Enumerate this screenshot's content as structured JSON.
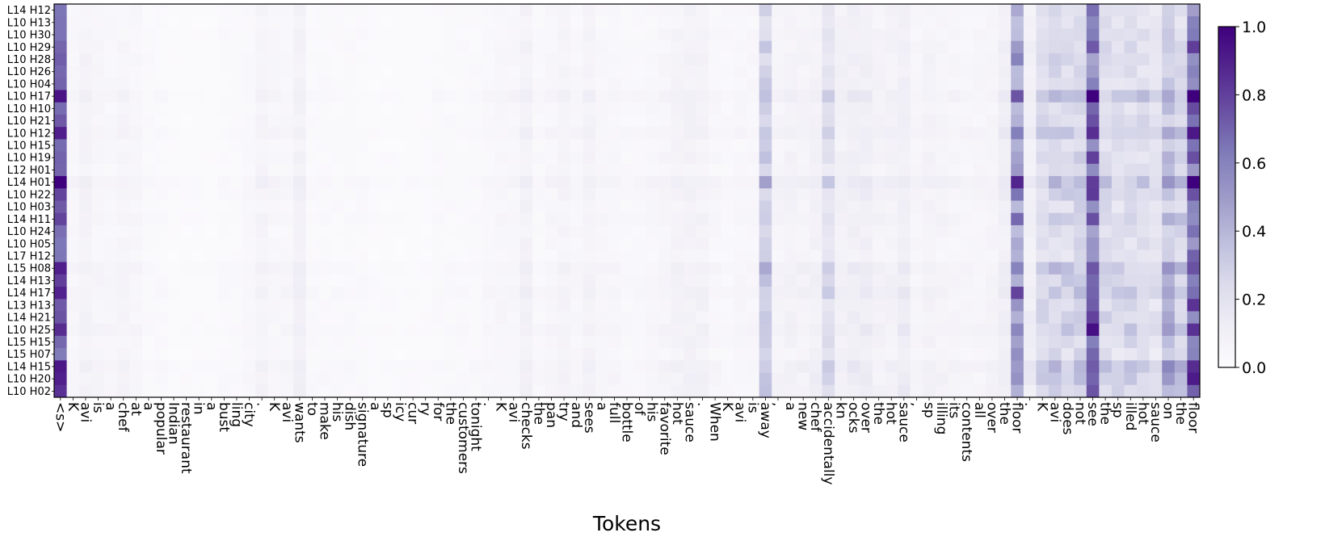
{
  "chart_data": {
    "type": "heatmap",
    "xlabel": "Tokens",
    "ylabel": "",
    "title": "",
    "colormap": "Purples",
    "colormap_stops": [
      "#fcfbfd",
      "#efedf5",
      "#dadaeb",
      "#bcbddc",
      "#9e9ac8",
      "#807dba",
      "#6a51a3",
      "#54278f",
      "#3f007d"
    ],
    "vmin": 0.0,
    "vmax": 1.0,
    "colorbar_ticks": [
      "0.0",
      "0.2",
      "0.4",
      "0.6",
      "0.8",
      "1.0"
    ],
    "rows": [
      "L14 H12",
      "L10 H13",
      "L10 H30",
      "L10 H29",
      "L10 H28",
      "L10 H26",
      "L10 H04",
      "L10 H17",
      "L10 H10",
      "L10 H21",
      "L10 H12",
      "L10 H15",
      "L10 H19",
      "L12 H01",
      "L14 H01",
      "L10 H22",
      "L10 H03",
      "L14 H11",
      "L10 H24",
      "L10 H05",
      "L17 H12",
      "L15 H08",
      "L14 H13",
      "L14 H17",
      "L13 H13",
      "L14 H21",
      "L10 H25",
      "L15 H15",
      "L15 H07",
      "L14 H15",
      "L10 H20",
      "L10 H02"
    ],
    "tokens": [
      "<s>",
      "K",
      "avi",
      "is",
      "a",
      "chef",
      "at",
      "a",
      "popular",
      "Indian",
      "restaurant",
      "in",
      "a",
      "bust",
      "ling",
      "city",
      ".",
      "K",
      "avi",
      "wants",
      "to",
      "make",
      "his",
      "dish",
      "signature",
      "a",
      "sp",
      "icy",
      "cur",
      "ry",
      "for",
      "the",
      "customers",
      "tonight",
      ".",
      "K",
      "avi",
      "checks",
      "the",
      "pan",
      "try",
      "and",
      "sees",
      "a",
      "full",
      "bottle",
      "of",
      "his",
      "favorite",
      "hot",
      "sauce",
      ".",
      "When",
      "K",
      "avi",
      "is",
      "away",
      ",",
      "a",
      "new",
      "chef",
      "accidentally",
      "kn",
      "ocks",
      "over",
      "the",
      "hot",
      "sauce",
      ",",
      "sp",
      "illing",
      "its",
      "contents",
      "all",
      "over",
      "the",
      "floor",
      ".",
      "K",
      "avi",
      "does",
      "not",
      "see",
      "the",
      "sp",
      "illed",
      "hot",
      "sauce",
      "on",
      "the",
      "floor"
    ],
    "column_profile": [
      0.88,
      0.05,
      0.08,
      0.06,
      0.05,
      0.06,
      0.05,
      0.03,
      0.03,
      0.02,
      0.02,
      0.02,
      0.02,
      0.03,
      0.03,
      0.04,
      0.07,
      0.05,
      0.05,
      0.09,
      0.03,
      0.03,
      0.03,
      0.03,
      0.03,
      0.02,
      0.02,
      0.02,
      0.02,
      0.02,
      0.03,
      0.03,
      0.03,
      0.03,
      0.04,
      0.05,
      0.05,
      0.09,
      0.04,
      0.05,
      0.07,
      0.05,
      0.08,
      0.05,
      0.05,
      0.04,
      0.04,
      0.05,
      0.06,
      0.08,
      0.09,
      0.08,
      0.05,
      0.04,
      0.05,
      0.05,
      0.32,
      0.07,
      0.08,
      0.08,
      0.1,
      0.22,
      0.1,
      0.12,
      0.12,
      0.08,
      0.09,
      0.12,
      0.06,
      0.08,
      0.07,
      0.06,
      0.06,
      0.06,
      0.07,
      0.12,
      0.55,
      0.12,
      0.25,
      0.28,
      0.28,
      0.3,
      0.7,
      0.26,
      0.24,
      0.26,
      0.25,
      0.2,
      0.38,
      0.3,
      0.75
    ],
    "row_scale": [
      0.85,
      0.75,
      0.85,
      0.85,
      0.9,
      0.85,
      0.85,
      1.25,
      0.85,
      0.9,
      1.1,
      0.8,
      0.9,
      0.8,
      1.3,
      1.0,
      0.85,
      1.0,
      0.8,
      0.8,
      0.75,
      1.15,
      1.0,
      1.15,
      0.95,
      0.95,
      1.1,
      0.9,
      0.8,
      1.2,
      1.1,
      1.05
    ]
  }
}
